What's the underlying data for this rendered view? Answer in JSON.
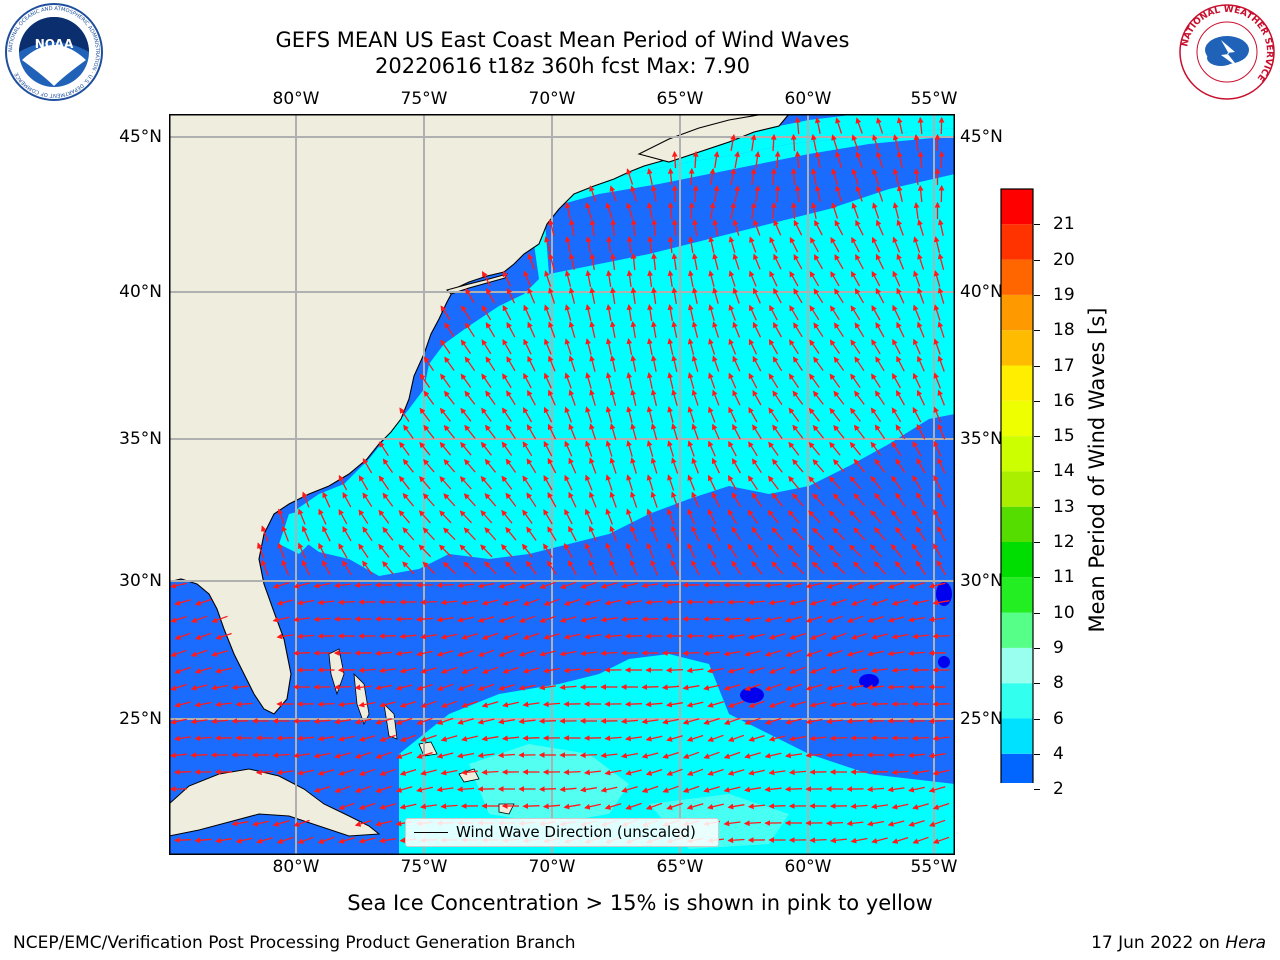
{
  "title_line1": "GEFS MEAN US East Coast Mean Period of Wind Waves",
  "title_line2": "20220616 t18z 360h fcst   Max: 7.90",
  "lon_labels": [
    "80°W",
    "75°W",
    "70°W",
    "65°W",
    "60°W",
    "55°W"
  ],
  "lat_labels": [
    "45°N",
    "40°N",
    "35°N",
    "30°N",
    "25°N"
  ],
  "legend_label": "Wind Wave Direction (unscaled)",
  "colorbar": {
    "label": "Mean Period of Wind Waves [s]",
    "ticks": [
      "2",
      "4",
      "6",
      "8",
      "9",
      "10",
      "11",
      "12",
      "13",
      "14",
      "15",
      "16",
      "17",
      "18",
      "19",
      "20",
      "21"
    ],
    "colors": [
      "#0066ff",
      "#00e0ff",
      "#33ffee",
      "#99ffee",
      "#55ff88",
      "#22ee22",
      "#00dd00",
      "#55dd00",
      "#aaee00",
      "#ccff00",
      "#eeff00",
      "#ffee00",
      "#ffbb00",
      "#ff9900",
      "#ff6600",
      "#ff3300",
      "#ff0000"
    ],
    "extend_min_color": "#0000ee"
  },
  "map_colors": {
    "land": "#efedde",
    "ocean_deep": "#1a6cff",
    "ocean_cyan": "#00ffff",
    "arrows": "#ff1a1a"
  },
  "note": "Sea Ice Concentration > 15% is shown in pink to yellow",
  "footer_left": "NCEP/EMC/Verification Post Processing Product Generation Branch",
  "footer_right_date": "17 Jun 2022 on ",
  "footer_right_host": "Hera",
  "logos": {
    "left_text": "NOAA",
    "left_ring": "NATIONAL OCEANIC AND ATMOSPHERIC ADMINISTRATION · U.S. DEPARTMENT OF COMMERCE",
    "right_ring": "NATIONAL WEATHER SERVICE"
  }
}
